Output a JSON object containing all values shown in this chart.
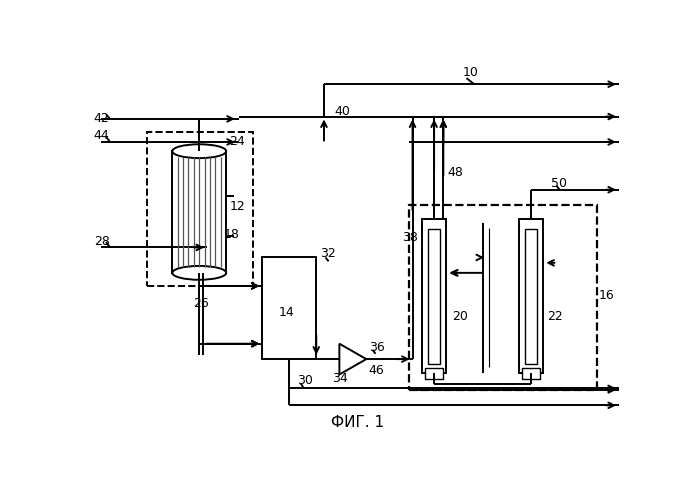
{
  "fig_width": 6.99,
  "fig_height": 4.9,
  "dpi": 100,
  "bg_color": "#ffffff",
  "lc": "#000000",
  "title": "ФИГ. 1",
  "title_fs": 11,
  "label_fs": 9
}
